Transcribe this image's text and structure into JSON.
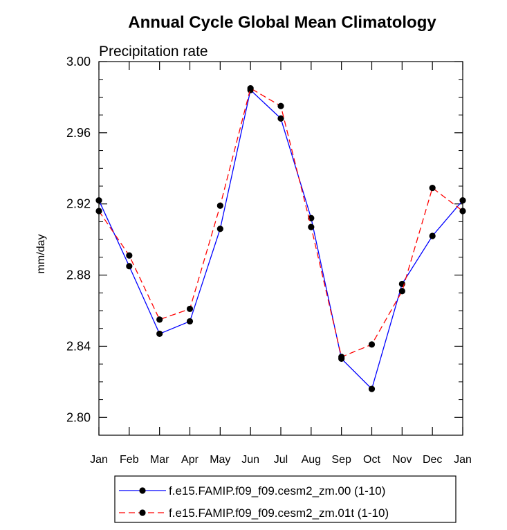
{
  "chart_data": {
    "type": "line",
    "title": "Annual Cycle Global Mean Climatology",
    "subtitle": "Precipitation rate",
    "xlabel": "",
    "ylabel": "mm/day",
    "categories": [
      "Jan",
      "Feb",
      "Mar",
      "Apr",
      "May",
      "Jun",
      "Jul",
      "Aug",
      "Sep",
      "Oct",
      "Nov",
      "Dec",
      "Jan"
    ],
    "ylim": [
      2.79,
      3.0
    ],
    "yticks": [
      "2.80",
      "2.84",
      "2.88",
      "2.92",
      "2.96",
      "3.00"
    ],
    "grid": false,
    "legend_placement": "bottom",
    "series": [
      {
        "name": "f.e15.FAMIP.f09_f09.cesm2_zm.00 (1-10)",
        "color": "#0000ff",
        "line_style": "solid",
        "values": [
          2.922,
          2.885,
          2.847,
          2.854,
          2.906,
          2.984,
          2.968,
          2.912,
          2.833,
          2.816,
          2.875,
          2.902,
          2.922
        ]
      },
      {
        "name": "f.e15.FAMIP.f09_f09.cesm2_zm.01t (1-10)",
        "color": "#ff0000",
        "line_style": "dashed",
        "values": [
          2.916,
          2.891,
          2.855,
          2.861,
          2.919,
          2.985,
          2.975,
          2.907,
          2.834,
          2.841,
          2.871,
          2.929,
          2.916
        ]
      }
    ]
  }
}
